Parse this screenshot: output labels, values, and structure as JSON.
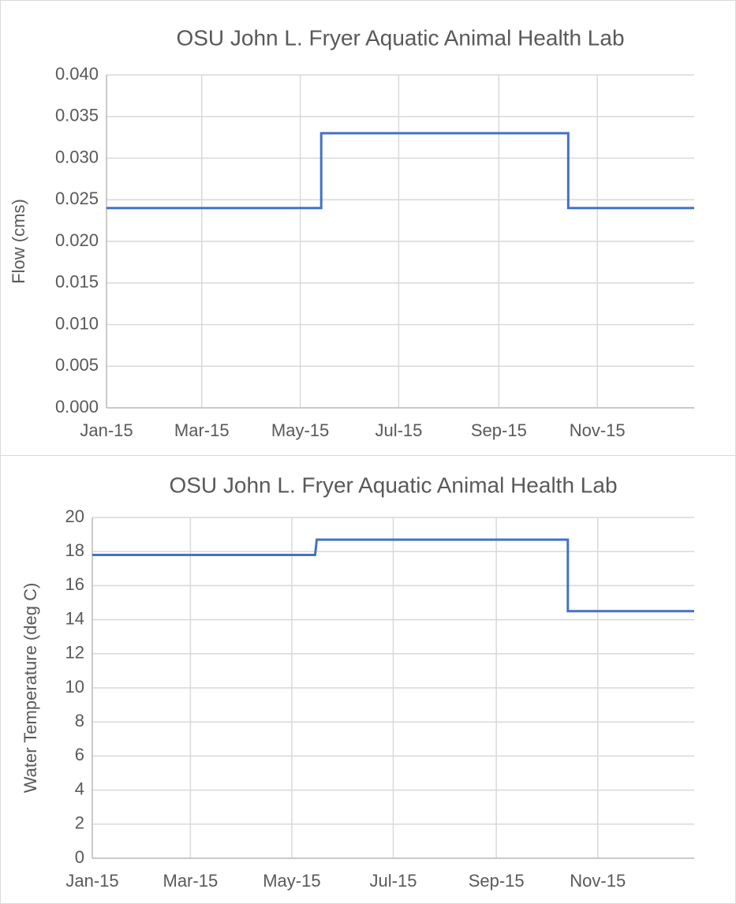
{
  "chart_data": [
    {
      "type": "line",
      "title": "OSU John L. Fryer Aquatic Animal Health Lab",
      "y_label": "Flow (cms)",
      "x": [
        0,
        133,
        133,
        286,
        286,
        364
      ],
      "values": [
        0.024,
        0.024,
        0.033,
        0.033,
        0.024,
        0.024
      ],
      "color": "#4472c4",
      "xlim": [
        0,
        364
      ],
      "xticks": [
        {
          "value": 0,
          "label": "Jan-15"
        },
        {
          "value": 59,
          "label": "Mar-15"
        },
        {
          "value": 120,
          "label": "May-15"
        },
        {
          "value": 181,
          "label": "Jul-15"
        },
        {
          "value": 243,
          "label": "Sep-15"
        },
        {
          "value": 304,
          "label": "Nov-15"
        }
      ],
      "ylim": [
        0,
        0.04
      ],
      "yticks": [
        {
          "value": 0,
          "label": "0.000"
        },
        {
          "value": 0.005,
          "label": "0.005"
        },
        {
          "value": 0.01,
          "label": "0.010"
        },
        {
          "value": 0.015,
          "label": "0.015"
        },
        {
          "value": 0.02,
          "label": "0.020"
        },
        {
          "value": 0.025,
          "label": "0.025"
        },
        {
          "value": 0.03,
          "label": "0.030"
        },
        {
          "value": 0.035,
          "label": "0.035"
        },
        {
          "value": 0.04,
          "label": "0.040"
        }
      ],
      "grid": true
    },
    {
      "type": "line",
      "title": "OSU John L. Fryer Aquatic Animal Health Lab",
      "y_label": "Water Temperature (deg C)",
      "x": [
        0,
        134,
        135,
        286,
        286,
        362
      ],
      "values": [
        17.8,
        17.8,
        18.7,
        18.7,
        14.5,
        14.5
      ],
      "color": "#4472c4",
      "xlim": [
        0,
        362
      ],
      "xticks": [
        {
          "value": 0,
          "label": "Jan-15"
        },
        {
          "value": 59,
          "label": "Mar-15"
        },
        {
          "value": 120,
          "label": "May-15"
        },
        {
          "value": 181,
          "label": "Jul-15"
        },
        {
          "value": 243,
          "label": "Sep-15"
        },
        {
          "value": 304,
          "label": "Nov-15"
        }
      ],
      "ylim": [
        0,
        20
      ],
      "yticks": [
        0,
        2,
        4,
        6,
        8,
        10,
        12,
        14,
        16,
        18,
        20
      ],
      "grid": true
    }
  ]
}
